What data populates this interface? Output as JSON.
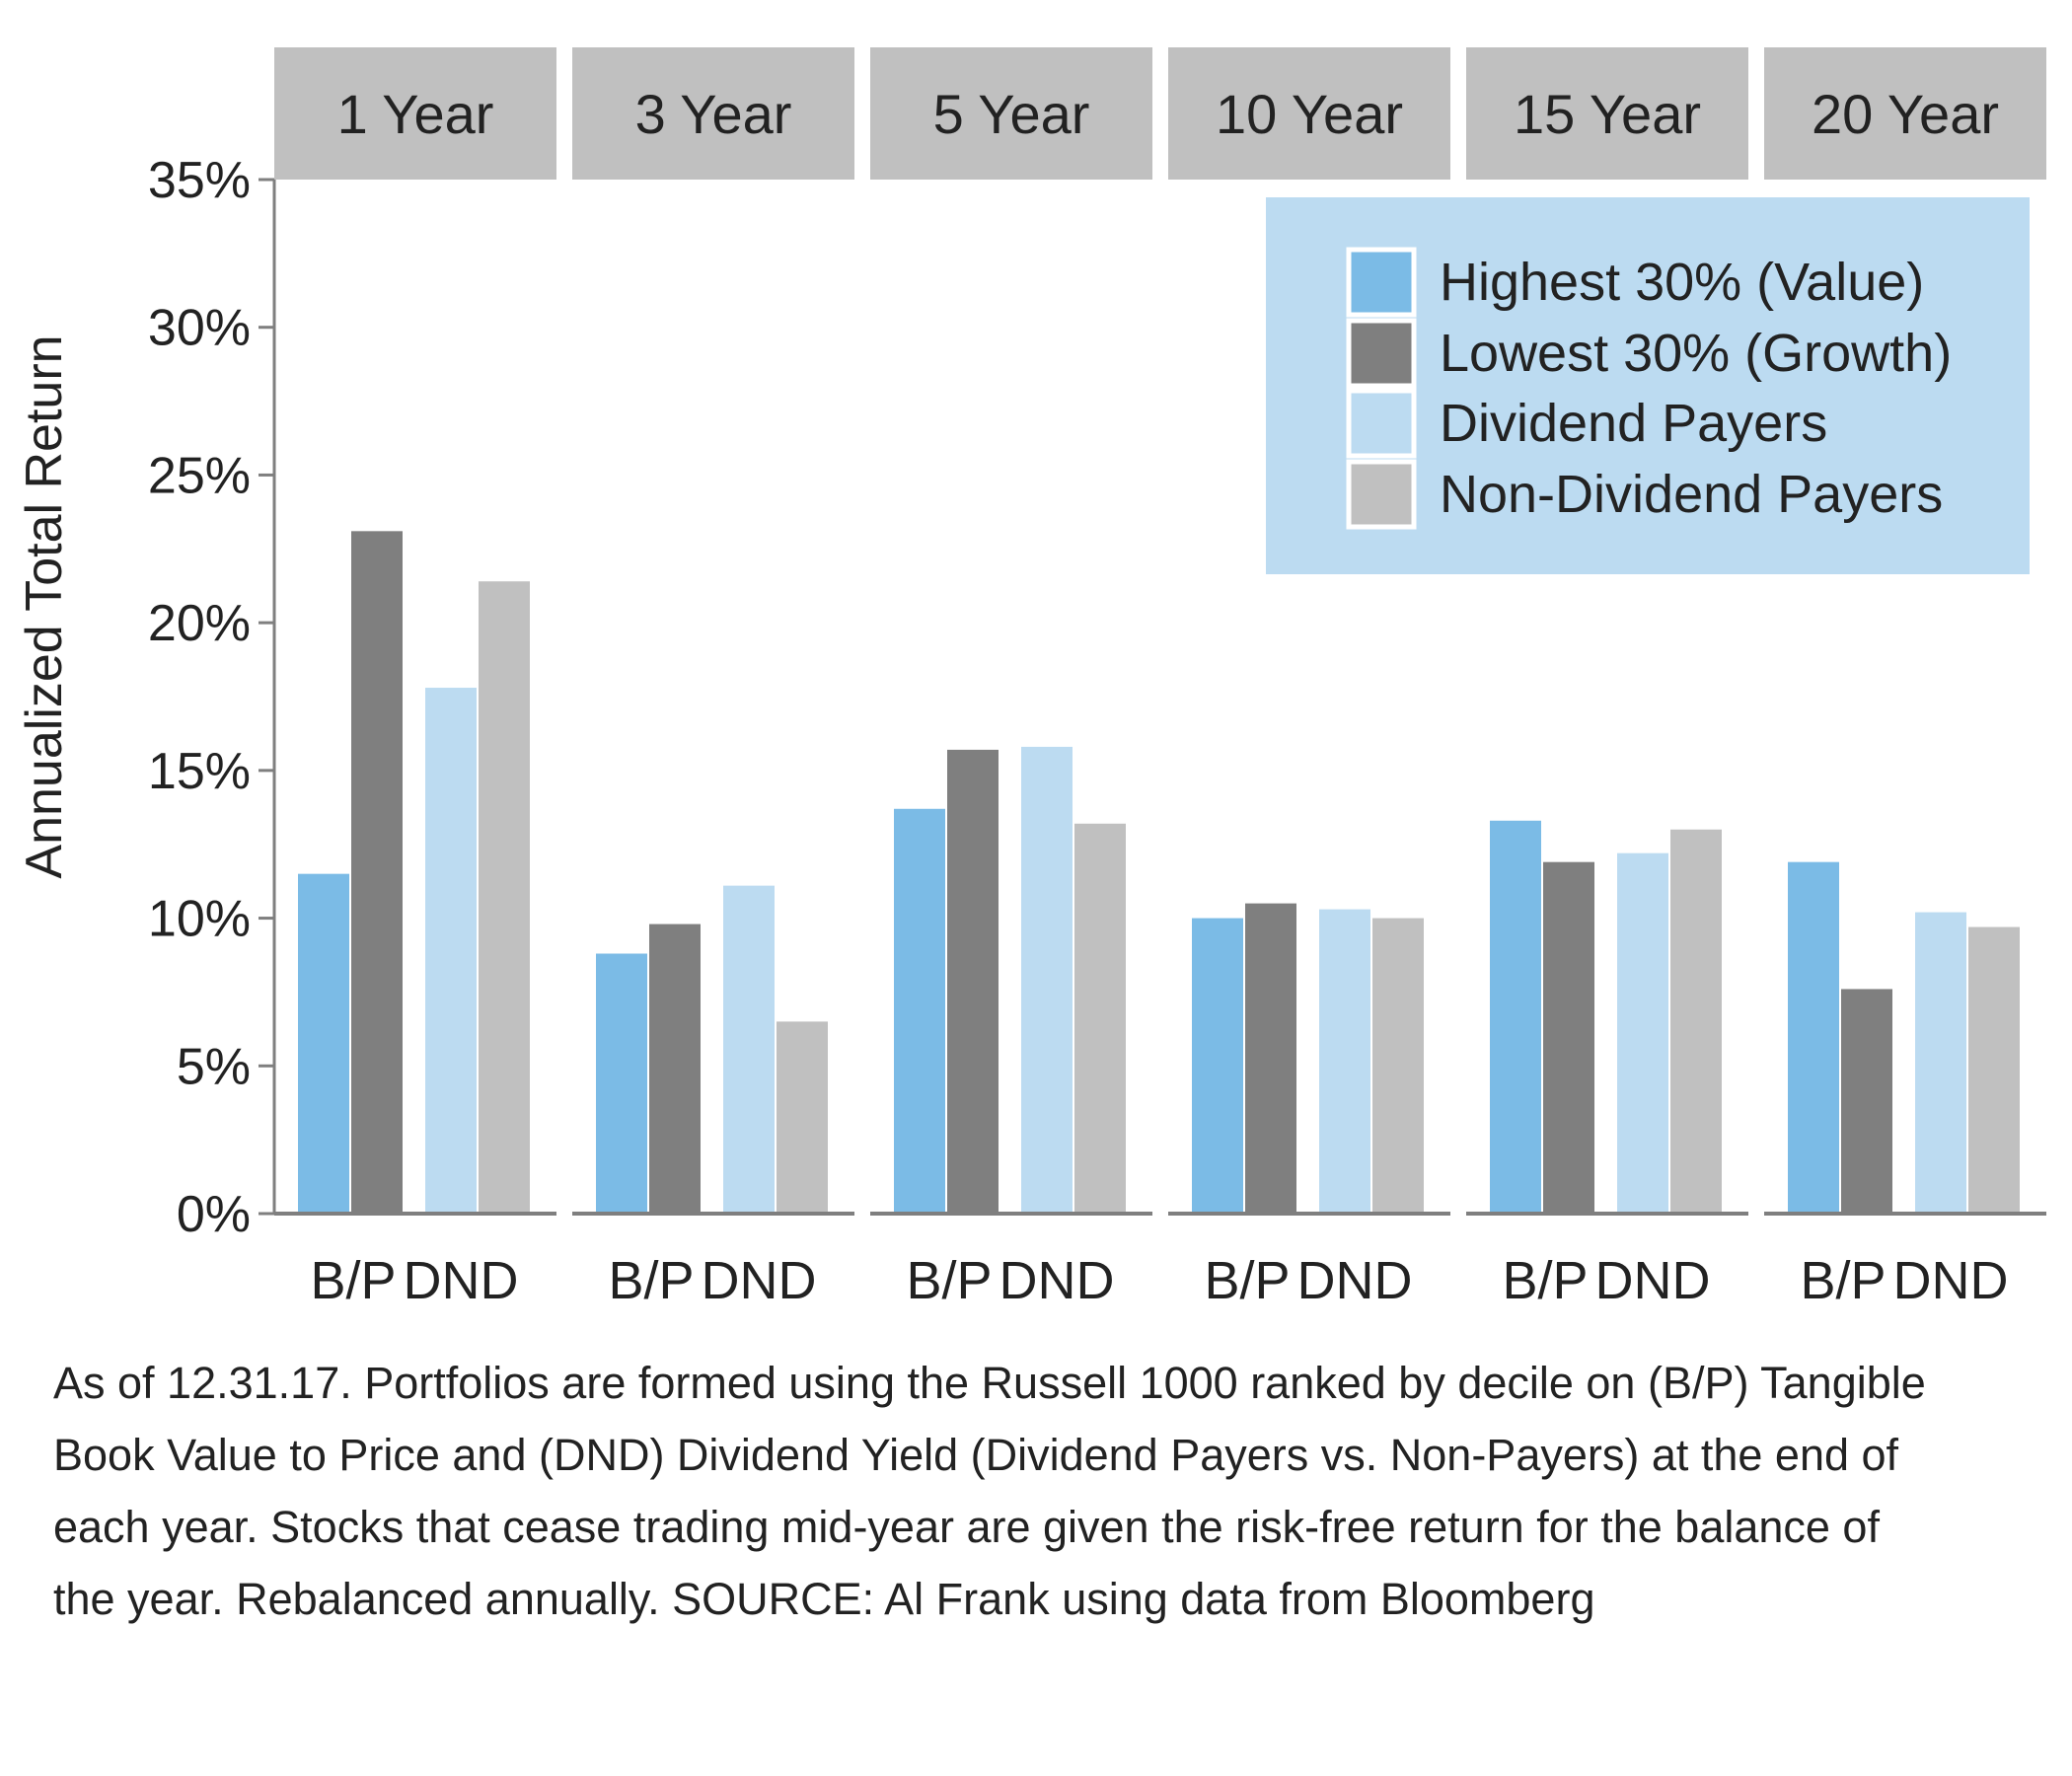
{
  "chart_data": {
    "type": "bar",
    "ylabel": "Annualized Total Return",
    "ylim": [
      0,
      35
    ],
    "yticks": [
      "0%",
      "5%",
      "10%",
      "15%",
      "20%",
      "25%",
      "30%",
      "35%"
    ],
    "ytick_values": [
      0,
      5,
      10,
      15,
      20,
      25,
      30,
      35
    ],
    "grid": false,
    "legend_position": "top-right",
    "facets": [
      "1 Year",
      "3 Year",
      "5 Year",
      "10 Year",
      "15 Year",
      "20 Year"
    ],
    "group_labels": [
      "B/P",
      "DND"
    ],
    "series": [
      {
        "name": "Highest 30% (Value)",
        "group": "B/P",
        "color": "#7bbbe6",
        "values": [
          11.5,
          8.8,
          13.7,
          10.0,
          13.3,
          11.9
        ]
      },
      {
        "name": "Lowest 30% (Growth)",
        "group": "B/P",
        "color": "#7f7f7f",
        "values": [
          23.1,
          9.8,
          15.7,
          10.5,
          11.9,
          7.6
        ]
      },
      {
        "name": "Dividend Payers",
        "group": "DND",
        "color": "#bcdbf1",
        "values": [
          17.8,
          11.1,
          15.8,
          10.3,
          12.2,
          10.2
        ]
      },
      {
        "name": "Non-Dividend Payers",
        "group": "DND",
        "color": "#c0c0c0",
        "values": [
          21.4,
          6.5,
          13.2,
          10.0,
          13.0,
          9.7
        ]
      }
    ]
  },
  "footnote": "As of 12.31.17. Portfolios are formed using the Russell 1000 ranked by decile on (B/P) Tangible Book Value to Price and (DND) Dividend Yield (Dividend Payers vs. Non-Payers) at the end of each year. Stocks that cease trading mid-year are given the risk-free return for the balance of the year. Rebalanced annually. SOURCE: Al Frank using data from Bloomberg",
  "colors": {
    "facet_header": "#c0c0c0",
    "legend_bg": "#bcdbf1",
    "axis": "#7f7f7f"
  }
}
